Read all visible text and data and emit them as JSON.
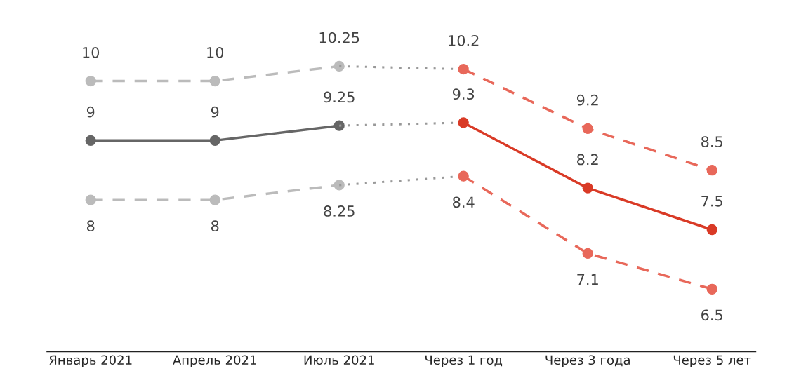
{
  "chart_data": {
    "type": "line",
    "categories": [
      "Январь 2021",
      "Апрель 2021",
      "Июль 2021",
      "Через 1 год",
      "Через 3 года",
      "Через 5 лет"
    ],
    "series": [
      {
        "color": "#bbbbbb",
        "line_style": "dashed",
        "marker": "circle",
        "values": [
          10,
          10,
          10.25,
          null,
          null,
          null
        ],
        "value_labels": [
          "10",
          "10",
          "10.25",
          null,
          null,
          null
        ]
      },
      {
        "color": "#666666",
        "line_style": "solid",
        "marker": "circle",
        "values": [
          9,
          9,
          9.25,
          null,
          null,
          null
        ],
        "value_labels": [
          "9",
          "9",
          "9.25",
          null,
          null,
          null
        ]
      },
      {
        "color": "#bbbbbb",
        "line_style": "dashed",
        "marker": "circle",
        "values": [
          8,
          8,
          8.25,
          null,
          null,
          null
        ],
        "value_labels": [
          "8",
          "8",
          "8.25",
          null,
          null,
          null
        ]
      },
      {
        "color": "#999999",
        "line_style": "dotted",
        "marker": "none",
        "values": [
          null,
          null,
          10.25,
          10.2,
          null,
          null
        ]
      },
      {
        "color": "#999999",
        "line_style": "dotted",
        "marker": "none",
        "values": [
          null,
          null,
          9.25,
          9.3,
          null,
          null
        ]
      },
      {
        "color": "#999999",
        "line_style": "dotted",
        "marker": "none",
        "values": [
          null,
          null,
          8.25,
          8.4,
          null,
          null
        ]
      },
      {
        "color": "#e8685a",
        "line_style": "dashed",
        "marker": "circle",
        "values": [
          null,
          null,
          null,
          10.2,
          9.2,
          8.5
        ],
        "value_labels": [
          null,
          null,
          null,
          "10.2",
          "9.2",
          "8.5"
        ]
      },
      {
        "color": "#d93a26",
        "line_style": "solid",
        "marker": "circle",
        "values": [
          null,
          null,
          null,
          9.3,
          8.2,
          7.5
        ],
        "value_labels": [
          null,
          null,
          null,
          "9.3",
          "8.2",
          "7.5"
        ]
      },
      {
        "color": "#e8685a",
        "line_style": "dashed",
        "marker": "circle",
        "values": [
          null,
          null,
          null,
          8.4,
          7.1,
          6.5
        ],
        "value_labels": [
          null,
          null,
          null,
          "8.4",
          "7.1",
          "6.5"
        ]
      }
    ],
    "tick_labels": "x",
    "grid": false,
    "legend": false
  }
}
